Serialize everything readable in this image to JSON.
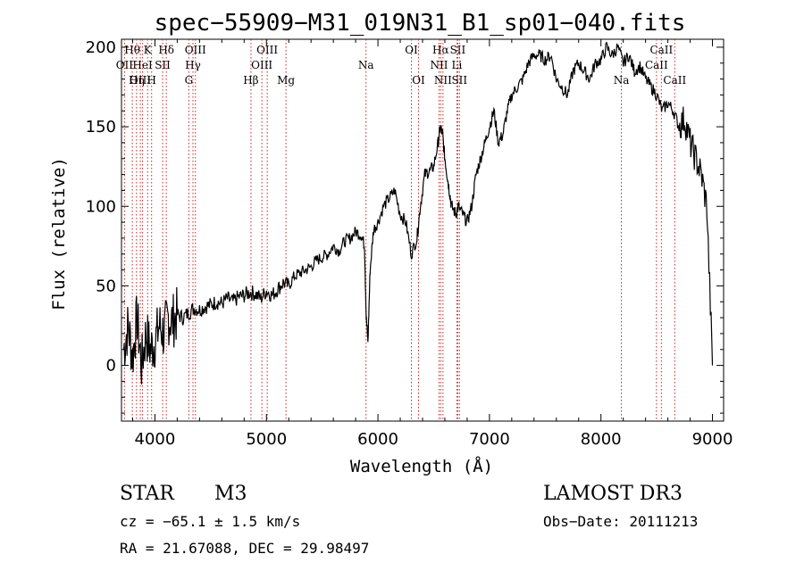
{
  "chart_data": {
    "type": "line",
    "title": "spec−55909−M31_019N31_B1_sp01−040.fits",
    "xlabel": "Wavelength (Å)",
    "ylabel": "Flux (relative)",
    "xlim": [
      3700,
      9100
    ],
    "ylim": [
      -35,
      205
    ],
    "xticks": [
      4000,
      5000,
      6000,
      7000,
      8000,
      9000
    ],
    "yticks": [
      0,
      50,
      100,
      150,
      200
    ],
    "series": [
      {
        "name": "spectrum",
        "x": [
          3720,
          3760,
          3800,
          3840,
          3880,
          3920,
          3960,
          4000,
          4040,
          4080,
          4120,
          4160,
          4200,
          4250,
          4300,
          4350,
          4400,
          4450,
          4500,
          4550,
          4600,
          4650,
          4700,
          4750,
          4800,
          4850,
          4900,
          4950,
          5000,
          5050,
          5100,
          5150,
          5200,
          5250,
          5300,
          5350,
          5400,
          5450,
          5500,
          5550,
          5600,
          5650,
          5700,
          5750,
          5800,
          5850,
          5880,
          5895,
          5910,
          5930,
          5960,
          6000,
          6050,
          6100,
          6150,
          6200,
          6250,
          6300,
          6350,
          6380,
          6420,
          6460,
          6500,
          6540,
          6560,
          6580,
          6600,
          6620,
          6640,
          6660,
          6700,
          6720,
          6760,
          6800,
          6840,
          6880,
          6920,
          6960,
          7000,
          7040,
          7080,
          7120,
          7160,
          7200,
          7250,
          7300,
          7350,
          7400,
          7450,
          7500,
          7550,
          7600,
          7650,
          7700,
          7750,
          7800,
          7850,
          7900,
          7950,
          8000,
          8050,
          8100,
          8150,
          8200,
          8250,
          8300,
          8350,
          8400,
          8450,
          8500,
          8550,
          8600,
          8650,
          8700,
          8750,
          8800,
          8850,
          8900,
          8950,
          9000
        ],
        "y": [
          10,
          25,
          5,
          30,
          0,
          20,
          10,
          15,
          25,
          20,
          30,
          28,
          32,
          30,
          33,
          36,
          35,
          37,
          38,
          40,
          39,
          42,
          40,
          43,
          44,
          46,
          45,
          42,
          47,
          44,
          48,
          52,
          50,
          56,
          58,
          60,
          62,
          66,
          68,
          70,
          75,
          72,
          78,
          80,
          84,
          82,
          75,
          30,
          15,
          60,
          85,
          90,
          100,
          105,
          110,
          95,
          90,
          70,
          80,
          100,
          120,
          122,
          125,
          140,
          150,
          145,
          130,
          120,
          110,
          100,
          95,
          100,
          95,
          90,
          100,
          120,
          130,
          140,
          150,
          160,
          140,
          145,
          160,
          170,
          175,
          180,
          190,
          195,
          195,
          192,
          195,
          180,
          175,
          170,
          185,
          190,
          185,
          180,
          190,
          192,
          200,
          195,
          200,
          190,
          195,
          185,
          188,
          180,
          175,
          170,
          160,
          165,
          160,
          150,
          155,
          140,
          130,
          120,
          100,
          0
        ]
      }
    ],
    "lines": [
      {
        "label": "Hθ",
        "x": 3797,
        "row": 0
      },
      {
        "label": "OII",
        "x": 3727,
        "row": 1
      },
      {
        "label": "OIII",
        "x": 3869,
        "row": 2
      },
      {
        "label": "Hη",
        "x": 3835,
        "row": 2
      },
      {
        "label": "K",
        "x": 3934,
        "row": 0
      },
      {
        "label": "HeI",
        "x": 3889,
        "row": 1
      },
      {
        "label": "H",
        "x": 3970,
        "row": 2
      },
      {
        "label": "Hδ",
        "x": 4102,
        "row": 0
      },
      {
        "label": "SII",
        "x": 4069,
        "row": 1
      },
      {
        "label": "OIII",
        "x": 4363,
        "row": 0
      },
      {
        "label": "Hγ",
        "x": 4341,
        "row": 1
      },
      {
        "label": "G",
        "x": 4304,
        "row": 2
      },
      {
        "label": "OIII",
        "x": 5007,
        "row": 0
      },
      {
        "label": "OIII",
        "x": 4959,
        "row": 1
      },
      {
        "label": "Hβ",
        "x": 4861,
        "row": 2
      },
      {
        "label": "Mg",
        "x": 5175,
        "row": 2
      },
      {
        "label": "Na",
        "x": 5893,
        "row": 1
      },
      {
        "label": "OI",
        "x": 6300,
        "row": 0
      },
      {
        "label": "OI",
        "x": 6364,
        "row": 2
      },
      {
        "label": "Hα",
        "x": 6563,
        "row": 0
      },
      {
        "label": "NII",
        "x": 6548,
        "row": 1
      },
      {
        "label": "NII",
        "x": 6583,
        "row": 2
      },
      {
        "label": "SII",
        "x": 6716,
        "row": 0
      },
      {
        "label": "Li",
        "x": 6708,
        "row": 1
      },
      {
        "label": "SII",
        "x": 6731,
        "row": 2
      },
      {
        "label": "CaII",
        "x": 8542,
        "row": 0
      },
      {
        "label": "CaII",
        "x": 8498,
        "row": 1
      },
      {
        "label": "Na",
        "x": 8183,
        "row": 2
      },
      {
        "label": "CaII",
        "x": 8662,
        "row": 2
      }
    ]
  },
  "info": {
    "class_label": "STAR",
    "subclass": "M3",
    "survey": "LAMOST DR3",
    "cz": "cz = −65.1 ± 1.5 km/s",
    "obs_date": "Obs−Date: 20111213",
    "radec": "RA =  21.67088, DEC =  29.98497"
  },
  "colors": {
    "line_marker": "#cc2222",
    "spectrum": "#000000"
  }
}
